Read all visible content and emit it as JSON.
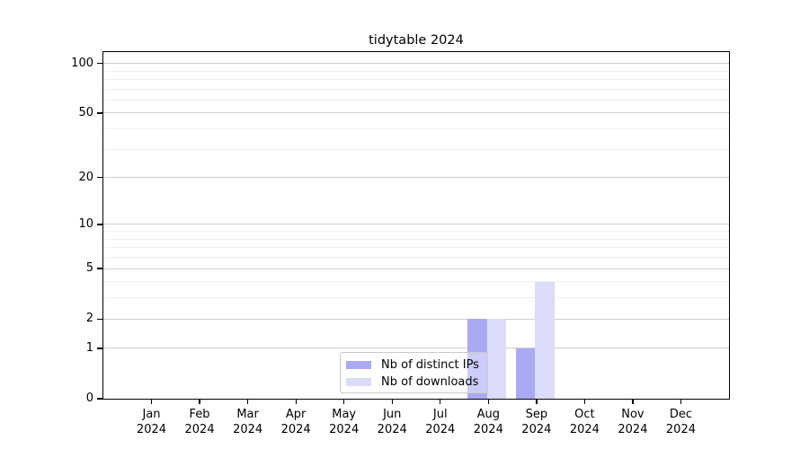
{
  "chart_data": {
    "type": "bar",
    "title": "tidytable 2024",
    "categories": [
      "Jan",
      "Feb",
      "Mar",
      "Apr",
      "May",
      "Jun",
      "Jul",
      "Aug",
      "Sep",
      "Oct",
      "Nov",
      "Dec"
    ],
    "year": "2024",
    "series": [
      {
        "name": "Nb of distinct IPs",
        "color": "#aaaaf4",
        "values": [
          0,
          0,
          0,
          0,
          0,
          0,
          0,
          2,
          1,
          0,
          0,
          0
        ]
      },
      {
        "name": "Nb of downloads",
        "color": "#dbdbfa",
        "values": [
          0,
          0,
          0,
          0,
          0,
          0,
          0,
          2,
          4,
          0,
          0,
          0
        ]
      }
    ],
    "y_scale": "log10(1+y)",
    "y_major_ticks": [
      0,
      1,
      2,
      5,
      10,
      20,
      50,
      100
    ],
    "y_minor_ticks": [
      3,
      4,
      6,
      7,
      8,
      9,
      30,
      40,
      60,
      70,
      80,
      90
    ],
    "ylim": [
      0,
      117
    ],
    "xlabel": "",
    "ylabel": "",
    "grid": "horizontal",
    "legend_position": "lower-center",
    "colors": {
      "major_grid": "#cfcfcf",
      "minor_grid": "#f0f0f0",
      "axis": "#000000",
      "background": "#ffffff",
      "legend_border": "#cbcbcb"
    }
  }
}
